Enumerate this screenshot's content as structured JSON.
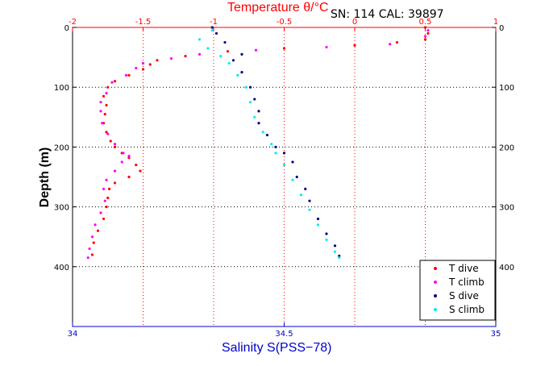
{
  "chart_data": {
    "type": "scatter",
    "title": "Temperature θ/°C",
    "info_label": "SN: 114  CAL: 39897",
    "xlabel": "Salinity S(PSS−78)",
    "ylabel": "Depth (m)",
    "grid": true,
    "legend_placement": "bottom-right",
    "top_axis": {
      "label": "Temperature θ/°C",
      "range": [
        -2,
        1
      ],
      "ticks": [
        -2,
        -1.5,
        -1,
        -0.5,
        0,
        0.5,
        1
      ],
      "tick_labels": [
        "-2",
        "-1.5",
        "-1",
        "-0.5",
        "0",
        "0.5",
        "1"
      ],
      "color": "#ff0000"
    },
    "bottom_axis": {
      "label": "Salinity S(PSS−78)",
      "range": [
        34,
        35
      ],
      "ticks": [
        34,
        34.5,
        35
      ],
      "tick_labels": [
        "34",
        "34.5",
        "35"
      ],
      "color": "#0000cc"
    },
    "y_axis": {
      "label": "Depth (m)",
      "range": [
        0,
        500
      ],
      "reversed": true,
      "ticks": [
        0,
        100,
        200,
        300,
        400
      ],
      "tick_labels": [
        "0",
        "100",
        "200",
        "300",
        "400"
      ]
    },
    "series": [
      {
        "name": "T dive",
        "axis": "top",
        "color": "#ff0000",
        "points": [
          [
            0.5,
            0
          ],
          [
            0.52,
            10
          ],
          [
            0.5,
            20
          ],
          [
            0.3,
            25
          ],
          [
            0.0,
            30
          ],
          [
            -0.5,
            35
          ],
          [
            -0.9,
            40
          ],
          [
            -1.2,
            48
          ],
          [
            -1.4,
            55
          ],
          [
            -1.45,
            62
          ],
          [
            -1.5,
            70
          ],
          [
            -1.6,
            80
          ],
          [
            -1.7,
            90
          ],
          [
            -1.75,
            100
          ],
          [
            -1.78,
            115
          ],
          [
            -1.76,
            130
          ],
          [
            -1.77,
            145
          ],
          [
            -1.78,
            160
          ],
          [
            -1.76,
            175
          ],
          [
            -1.73,
            190
          ],
          [
            -1.7,
            200
          ],
          [
            -1.65,
            210
          ],
          [
            -1.6,
            218
          ],
          [
            -1.55,
            230
          ],
          [
            -1.52,
            240
          ],
          [
            -1.6,
            250
          ],
          [
            -1.7,
            260
          ],
          [
            -1.74,
            270
          ],
          [
            -1.75,
            285
          ],
          [
            -1.76,
            300
          ],
          [
            -1.78,
            320
          ],
          [
            -1.82,
            340
          ],
          [
            -1.85,
            360
          ],
          [
            -1.86,
            380
          ]
        ]
      },
      {
        "name": "T climb",
        "axis": "top",
        "color": "#ff00ff",
        "points": [
          [
            0.52,
            5
          ],
          [
            0.5,
            15
          ],
          [
            0.25,
            28
          ],
          [
            -0.2,
            33
          ],
          [
            -0.7,
            38
          ],
          [
            -1.1,
            45
          ],
          [
            -1.3,
            52
          ],
          [
            -1.5,
            60
          ],
          [
            -1.55,
            68
          ],
          [
            -1.62,
            80
          ],
          [
            -1.72,
            92
          ],
          [
            -1.76,
            110
          ],
          [
            -1.8,
            125
          ],
          [
            -1.8,
            140
          ],
          [
            -1.79,
            160
          ],
          [
            -1.75,
            178
          ],
          [
            -1.7,
            195
          ],
          [
            -1.64,
            210
          ],
          [
            -1.6,
            215
          ],
          [
            -1.65,
            225
          ],
          [
            -1.7,
            240
          ],
          [
            -1.76,
            255
          ],
          [
            -1.78,
            270
          ],
          [
            -1.77,
            290
          ],
          [
            -1.8,
            310
          ],
          [
            -1.84,
            330
          ],
          [
            -1.86,
            350
          ],
          [
            -1.88,
            370
          ],
          [
            -1.89,
            385
          ]
        ]
      },
      {
        "name": "S dive",
        "axis": "bottom",
        "color": "#00008b",
        "points": [
          [
            34.33,
            0
          ],
          [
            34.34,
            10
          ],
          [
            34.36,
            25
          ],
          [
            34.4,
            45
          ],
          [
            34.38,
            55
          ],
          [
            34.4,
            75
          ],
          [
            34.42,
            100
          ],
          [
            34.43,
            120
          ],
          [
            34.44,
            140
          ],
          [
            34.44,
            160
          ],
          [
            34.46,
            180
          ],
          [
            34.48,
            200
          ],
          [
            34.5,
            210
          ],
          [
            34.52,
            225
          ],
          [
            34.53,
            250
          ],
          [
            34.55,
            270
          ],
          [
            34.56,
            290
          ],
          [
            34.58,
            320
          ],
          [
            34.6,
            345
          ],
          [
            34.62,
            365
          ],
          [
            34.63,
            382
          ]
        ]
      },
      {
        "name": "S climb",
        "axis": "bottom",
        "color": "#00eeee",
        "points": [
          [
            34.33,
            5
          ],
          [
            34.3,
            20
          ],
          [
            34.32,
            35
          ],
          [
            34.35,
            48
          ],
          [
            34.37,
            60
          ],
          [
            34.39,
            80
          ],
          [
            34.41,
            100
          ],
          [
            34.42,
            125
          ],
          [
            34.43,
            150
          ],
          [
            34.45,
            175
          ],
          [
            34.47,
            195
          ],
          [
            34.48,
            210
          ],
          [
            34.5,
            230
          ],
          [
            34.52,
            255
          ],
          [
            34.54,
            280
          ],
          [
            34.56,
            305
          ],
          [
            34.58,
            330
          ],
          [
            34.6,
            355
          ],
          [
            34.62,
            375
          ],
          [
            34.63,
            385
          ]
        ]
      }
    ]
  }
}
